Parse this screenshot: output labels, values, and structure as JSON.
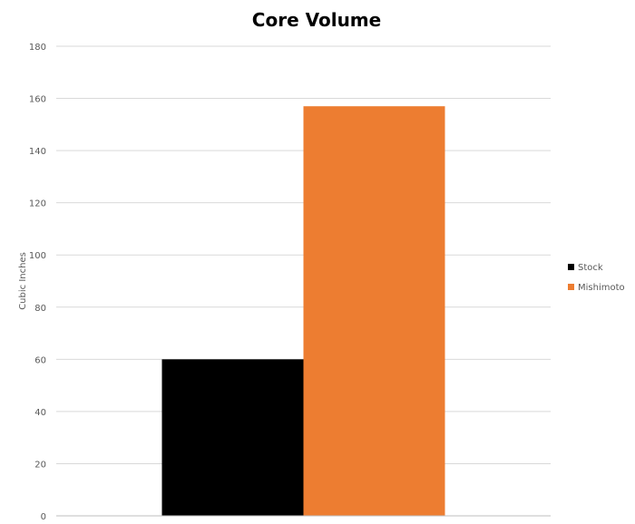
{
  "chart_data": {
    "type": "bar",
    "title": "Core Volume",
    "ylabel": "Cubic Inches",
    "xlabel": "",
    "categories": [
      ""
    ],
    "series": [
      {
        "name": "Stock",
        "values": [
          60
        ],
        "color": "#000000"
      },
      {
        "name": "Mishimoto",
        "values": [
          157
        ],
        "color": "#ed7d31"
      }
    ],
    "ylim": [
      0,
      180
    ],
    "yticks": [
      0,
      20,
      40,
      60,
      80,
      100,
      120,
      140,
      160,
      180
    ],
    "grid": true,
    "legend_position": "right"
  }
}
